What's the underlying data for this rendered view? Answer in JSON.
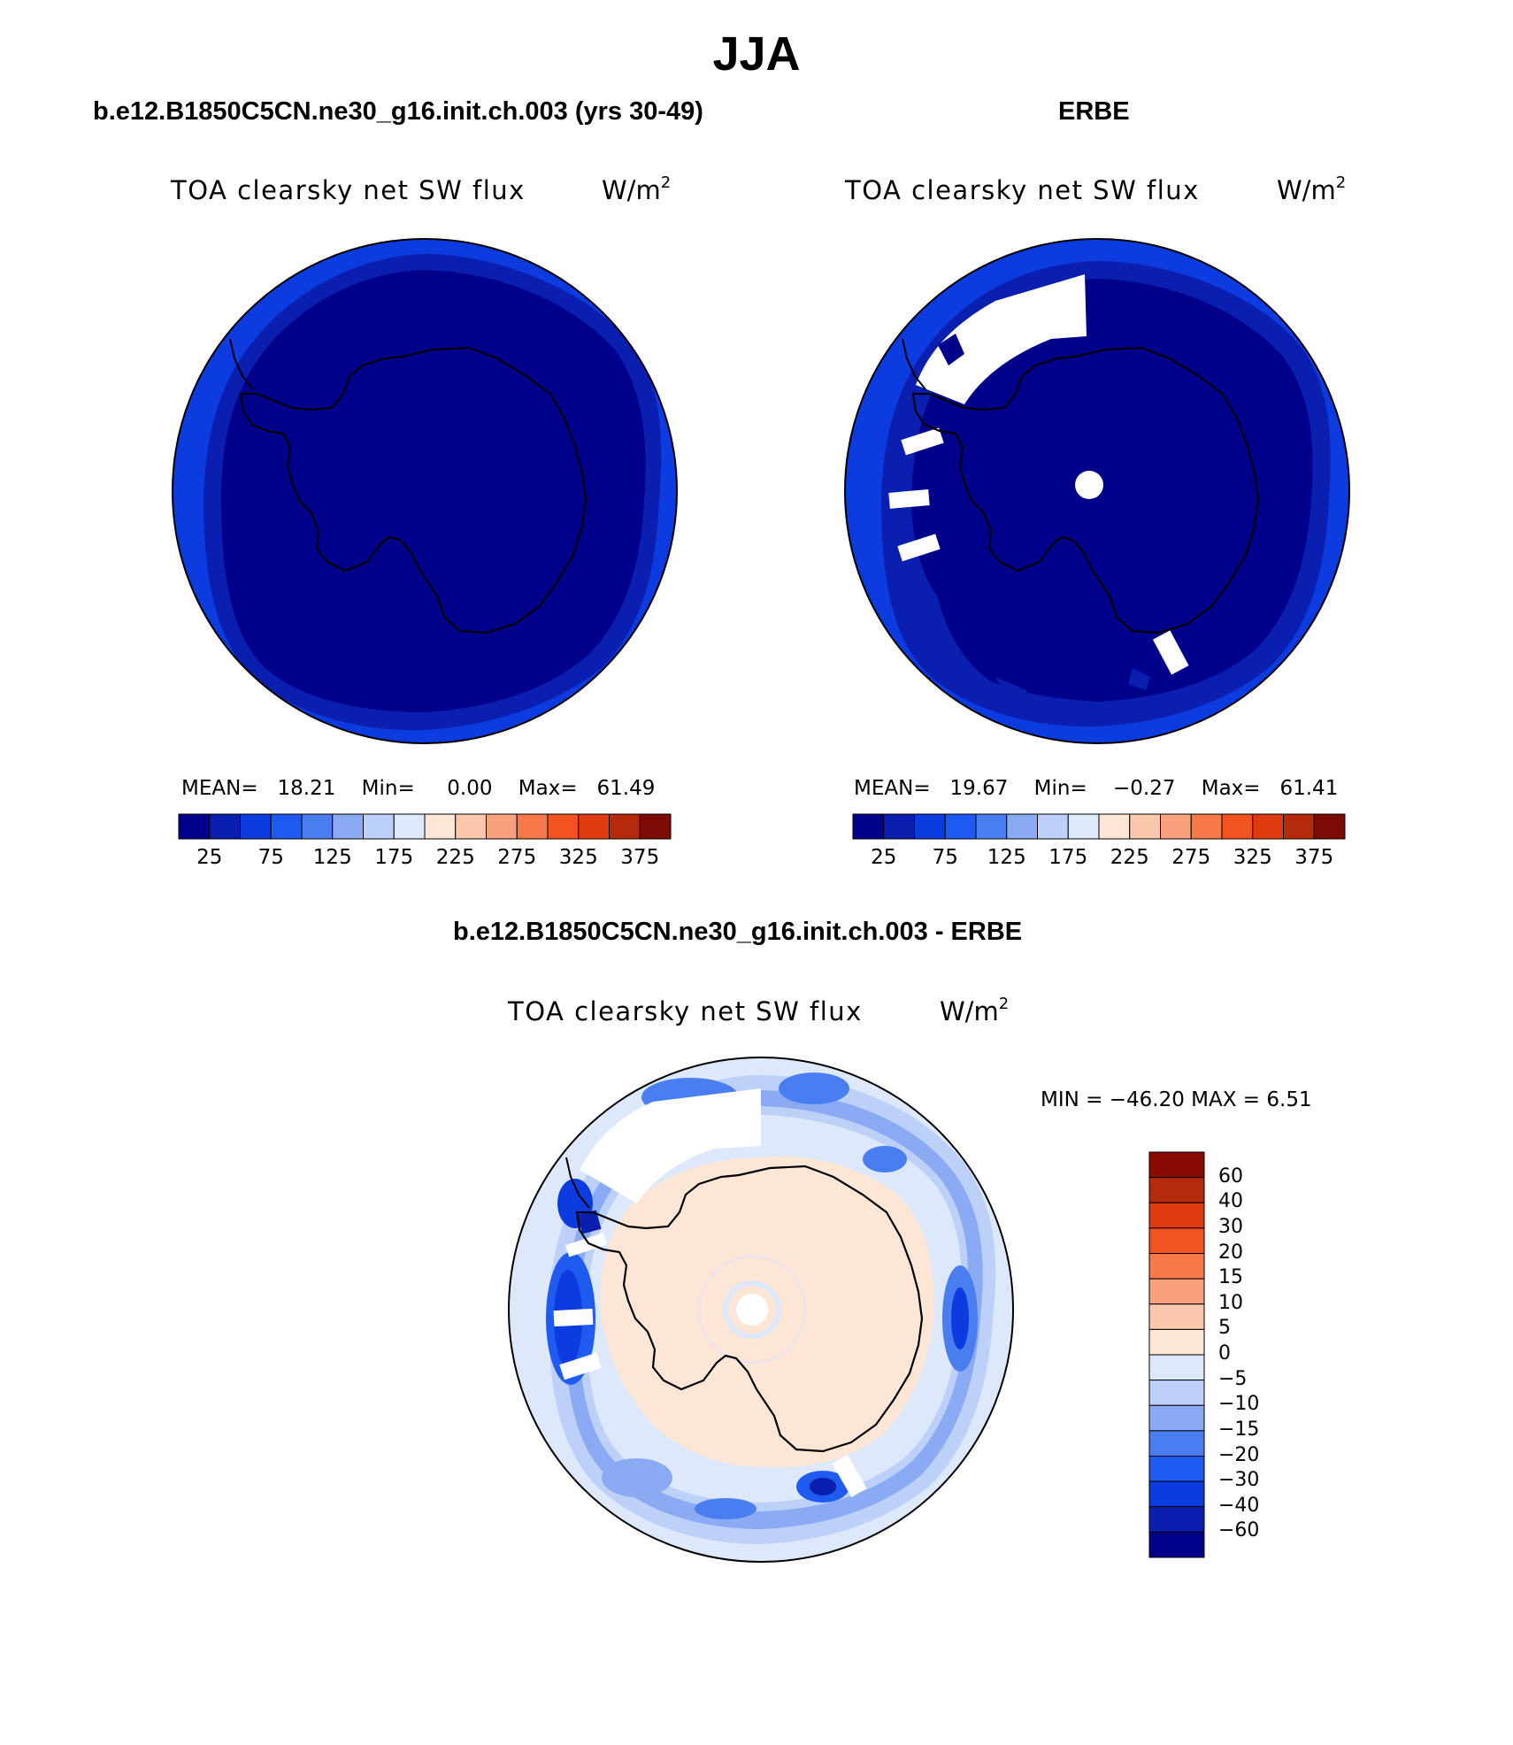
{
  "title": "JJA",
  "panels": {
    "model": {
      "title": "b.e12.B1850C5CN.ne30_g16.init.ch.003 (yrs 30-49)",
      "var_title": "TOA clearsky net SW flux",
      "units": "W/m",
      "units_sup": "2",
      "mean_label": "MEAN=",
      "mean": "18.21",
      "min_label": "Min=",
      "min": "0.00",
      "max_label": "Max=",
      "max": "61.49"
    },
    "obs": {
      "title": "ERBE",
      "var_title": "TOA clearsky net SW flux",
      "units": "W/m",
      "units_sup": "2",
      "mean_label": "MEAN=",
      "mean": "19.67",
      "min_label": "Min=",
      "min": "−0.27",
      "max_label": "Max=",
      "max": "61.41"
    },
    "diff": {
      "title": "b.e12.B1850C5CN.ne30_g16.init.ch.003 - ERBE",
      "var_title": "TOA clearsky net SW flux",
      "units": "W/m",
      "units_sup": "2",
      "minmax_label": "MIN = −46.20 MAX =    6.51"
    }
  },
  "colorbar_abs": {
    "colors": [
      "#00008b",
      "#0a1fb0",
      "#0c3be0",
      "#1f5bf0",
      "#4a7ef0",
      "#8aaaf4",
      "#bcd0f8",
      "#dde9fb",
      "#fde6d6",
      "#fcc8ad",
      "#f9a07e",
      "#f77848",
      "#f25320",
      "#e03a10",
      "#b42a0a",
      "#7e0a05"
    ],
    "tick_labels": [
      "25",
      "75",
      "125",
      "175",
      "225",
      "275",
      "325",
      "375"
    ]
  },
  "colorbar_diff": {
    "colors": [
      "#00008b",
      "#0a1fb0",
      "#0c3be0",
      "#1f5bf0",
      "#4a7ef0",
      "#8aaaf4",
      "#bcd0f8",
      "#dde9fb",
      "#fde6d6",
      "#fcc8ad",
      "#f9a07e",
      "#f77848",
      "#f25320",
      "#e03a10",
      "#b42a0a",
      "#8b0a05"
    ],
    "labels": [
      "60",
      "40",
      "30",
      "20",
      "15",
      "10",
      "5",
      "0",
      "−5",
      "−10",
      "−15",
      "−20",
      "−30",
      "−40",
      "−60"
    ]
  },
  "map_colors": {
    "deep": "#00008b",
    "mid": "#0a1fb0",
    "rim": "#0c3be0",
    "diff_land": "#fde6d6",
    "diff_ocean": "#dde9fb",
    "diff_neg1": "#bcd0f8",
    "diff_neg2": "#8aaaf4",
    "diff_neg3": "#4a7ef0",
    "diff_neg4": "#1f5bf0",
    "diff_neg5": "#0c3be0",
    "missing": "#ffffff"
  }
}
